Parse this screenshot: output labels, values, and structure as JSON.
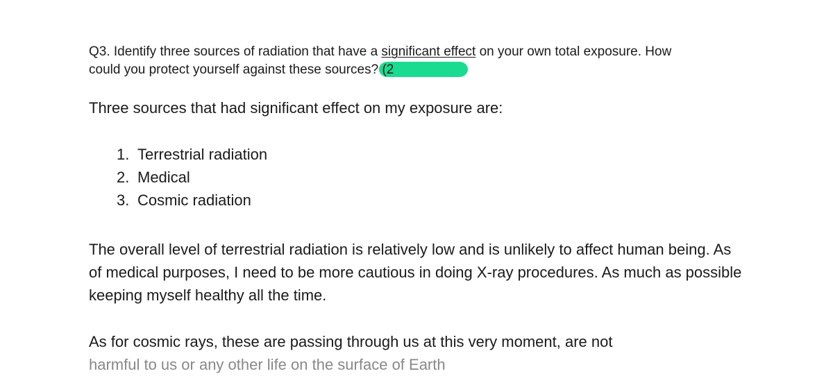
{
  "question": {
    "line1_pre": "Q3. Identify three sources of radiation that have a ",
    "line1_underlined": "significant effect",
    "line1_post": " on your own total exposure. How",
    "line2_pre": "could you protect yourself against these sources? ",
    "paren_text": "(2"
  },
  "intro": "Three sources that had significant effect on my exposure are:",
  "list": {
    "item1_num": "1.",
    "item1_text": "Terrestrial radiation",
    "item2_num": "2.",
    "item2_text": "Medical",
    "item3_num": "3.",
    "item3_text": "Cosmic radiation"
  },
  "paragraph1": "The overall level of terrestrial radiation is relatively low and is unlikely to affect human being. As of medical purposes, I need to be more cautious in doing X-ray procedures. As much as possible keeping myself healthy all the time.",
  "paragraph2_line1": "As for cosmic rays, these are passing through us at this very moment, are not",
  "paragraph2_line2": "harmful to us or any other life on the surface of Earth",
  "colors": {
    "background": "#ffffff",
    "text": "#1a1a1a",
    "highlight": "#1adb8f",
    "faded": "#888888"
  }
}
